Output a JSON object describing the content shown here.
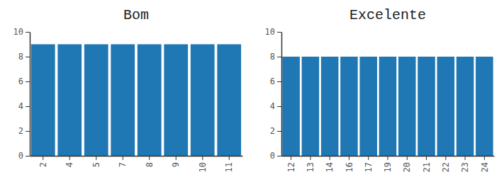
{
  "chart_data": [
    {
      "type": "bar",
      "title": "Bom",
      "categories": [
        "2",
        "4",
        "5",
        "7",
        "8",
        "9",
        "10",
        "11"
      ],
      "values": [
        9,
        9,
        9,
        9,
        9,
        9,
        9,
        9
      ],
      "color": "#1f77b4",
      "ylim": [
        0,
        10
      ],
      "yticks": [
        0,
        2,
        4,
        6,
        8,
        10
      ],
      "grid": false
    },
    {
      "type": "bar",
      "title": "Excelente",
      "categories": [
        "12",
        "13",
        "14",
        "16",
        "17",
        "19",
        "20",
        "21",
        "22",
        "23",
        "24"
      ],
      "values": [
        8,
        8,
        8,
        8,
        8,
        8,
        8,
        8,
        8,
        8,
        8
      ],
      "color": "#1f77b4",
      "ylim": [
        0,
        10
      ],
      "yticks": [
        0,
        2,
        4,
        6,
        8,
        10
      ],
      "grid": false
    }
  ]
}
